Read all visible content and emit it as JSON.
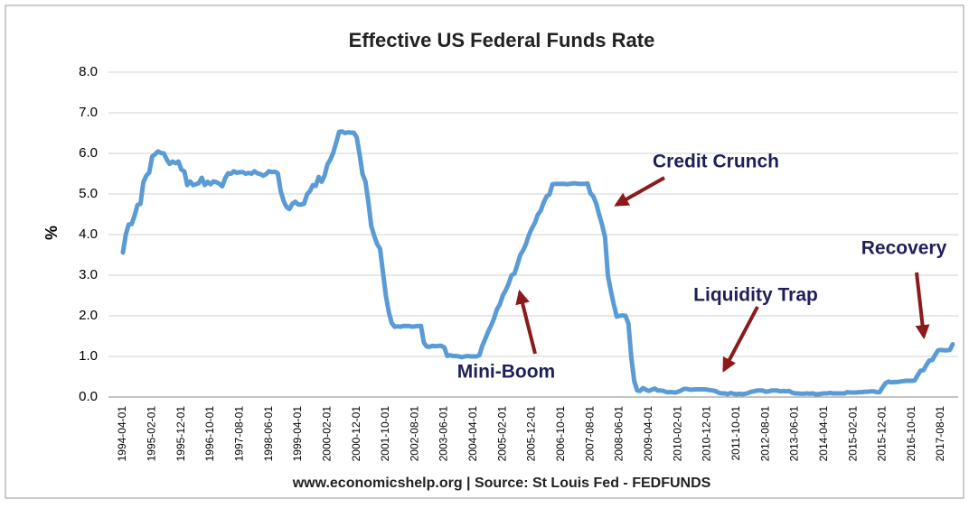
{
  "chart_data": {
    "type": "line",
    "title": "Effective US  Federal Funds Rate",
    "y_label": "%",
    "source": "www.economicshelp.org | Source: St Louis Fed - FEDFUNDS",
    "annotations": [
      "Credit Crunch",
      "Mini-Boom",
      "Liquidity Trap",
      "Recovery"
    ],
    "color": "#5b9bd5",
    "grid": true,
    "ylim": [
      0,
      8
    ],
    "yticks": [
      {
        "value": 0,
        "label": "0.0"
      },
      {
        "value": 1,
        "label": "1.0"
      },
      {
        "value": 2,
        "label": "2.0"
      },
      {
        "value": 3,
        "label": "3.0"
      },
      {
        "value": 4,
        "label": "4.0"
      },
      {
        "value": 5,
        "label": "5.0"
      },
      {
        "value": 6,
        "label": "6.0"
      },
      {
        "value": 7,
        "label": "7.0"
      },
      {
        "value": 8,
        "label": "8.0"
      }
    ],
    "categories": [
      "1994-04-01",
      null,
      null,
      null,
      null,
      null,
      null,
      null,
      null,
      null,
      "1995-02-01",
      null,
      null,
      null,
      null,
      null,
      null,
      null,
      null,
      null,
      "1995-12-01",
      null,
      null,
      null,
      null,
      null,
      null,
      null,
      null,
      null,
      "1996-10-01",
      null,
      null,
      null,
      null,
      null,
      null,
      null,
      null,
      null,
      "1997-08-01",
      null,
      null,
      null,
      null,
      null,
      null,
      null,
      null,
      null,
      "1998-06-01",
      null,
      null,
      null,
      null,
      null,
      null,
      null,
      null,
      null,
      "1999-04-01",
      null,
      null,
      null,
      null,
      null,
      null,
      null,
      null,
      null,
      "2000-02-01",
      null,
      null,
      null,
      null,
      null,
      null,
      null,
      null,
      null,
      "2000-12-01",
      null,
      null,
      null,
      null,
      null,
      null,
      null,
      null,
      null,
      "2001-10-01",
      null,
      null,
      null,
      null,
      null,
      null,
      null,
      null,
      null,
      "2002-08-01",
      null,
      null,
      null,
      null,
      null,
      null,
      null,
      null,
      null,
      "2003-06-01",
      null,
      null,
      null,
      null,
      null,
      null,
      null,
      null,
      null,
      "2004-04-01",
      null,
      null,
      null,
      null,
      null,
      null,
      null,
      null,
      null,
      "2005-02-01",
      null,
      null,
      null,
      null,
      null,
      null,
      null,
      null,
      null,
      "2005-12-01",
      null,
      null,
      null,
      null,
      null,
      null,
      null,
      null,
      null,
      "2006-10-01",
      null,
      null,
      null,
      null,
      null,
      null,
      null,
      null,
      null,
      "2007-08-01",
      null,
      null,
      null,
      null,
      null,
      null,
      null,
      null,
      null,
      "2008-06-01",
      null,
      null,
      null,
      null,
      null,
      null,
      null,
      null,
      null,
      "2009-04-01",
      null,
      null,
      null,
      null,
      null,
      null,
      null,
      null,
      null,
      "2010-02-01",
      null,
      null,
      null,
      null,
      null,
      null,
      null,
      null,
      null,
      "2010-12-01",
      null,
      null,
      null,
      null,
      null,
      null,
      null,
      null,
      null,
      "2011-10-01",
      null,
      null,
      null,
      null,
      null,
      null,
      null,
      null,
      null,
      "2012-08-01",
      null,
      null,
      null,
      null,
      null,
      null,
      null,
      null,
      null,
      "2013-06-01",
      null,
      null,
      null,
      null,
      null,
      null,
      null,
      null,
      null,
      "2014-04-01",
      null,
      null,
      null,
      null,
      null,
      null,
      null,
      null,
      null,
      "2015-02-01",
      null,
      null,
      null,
      null,
      null,
      null,
      null,
      null,
      null,
      "2015-12-01",
      null,
      null,
      null,
      null,
      null,
      null,
      null,
      null,
      null,
      "2016-10-01",
      null,
      null,
      null,
      null,
      null,
      null,
      null,
      null,
      null,
      "2017-08-01",
      null,
      null,
      null,
      null
    ],
    "values": [
      3.56,
      4.01,
      4.25,
      4.26,
      4.47,
      4.73,
      4.76,
      5.29,
      5.45,
      5.53,
      5.92,
      5.98,
      6.05,
      6.01,
      6.0,
      5.85,
      5.74,
      5.8,
      5.76,
      5.8,
      5.6,
      5.56,
      5.22,
      5.31,
      5.22,
      5.24,
      5.27,
      5.4,
      5.22,
      5.3,
      5.24,
      5.31,
      5.29,
      5.25,
      5.19,
      5.39,
      5.51,
      5.5,
      5.56,
      5.52,
      5.54,
      5.54,
      5.5,
      5.52,
      5.5,
      5.56,
      5.51,
      5.49,
      5.45,
      5.49,
      5.56,
      5.54,
      5.55,
      5.51,
      5.07,
      4.83,
      4.68,
      4.63,
      4.76,
      4.81,
      4.74,
      4.74,
      4.76,
      4.99,
      5.07,
      5.22,
      5.2,
      5.42,
      5.3,
      5.45,
      5.73,
      5.85,
      6.02,
      6.27,
      6.53,
      6.54,
      6.5,
      6.52,
      6.51,
      6.51,
      6.4,
      5.98,
      5.49,
      5.31,
      4.8,
      4.21,
      3.97,
      3.77,
      3.65,
      3.07,
      2.49,
      2.09,
      1.82,
      1.73,
      1.74,
      1.73,
      1.75,
      1.75,
      1.75,
      1.73,
      1.74,
      1.75,
      1.75,
      1.34,
      1.24,
      1.24,
      1.26,
      1.25,
      1.26,
      1.26,
      1.22,
      1.01,
      1.03,
      1.01,
      1.01,
      1.0,
      0.98,
      1.0,
      1.01,
      1.0,
      1.0,
      1.0,
      1.03,
      1.26,
      1.43,
      1.61,
      1.76,
      1.93,
      2.16,
      2.28,
      2.5,
      2.63,
      2.79,
      3.0,
      3.04,
      3.26,
      3.5,
      3.62,
      3.78,
      4.0,
      4.16,
      4.29,
      4.49,
      4.59,
      4.79,
      4.94,
      4.99,
      5.24,
      5.25,
      5.25,
      5.25,
      5.25,
      5.24,
      5.25,
      5.26,
      5.26,
      5.25,
      5.25,
      5.25,
      5.26,
      5.02,
      4.94,
      4.76,
      4.49,
      4.24,
      3.94,
      2.98,
      2.61,
      2.28,
      1.98,
      2.0,
      2.01,
      2.0,
      1.81,
      0.97,
      0.39,
      0.16,
      0.15,
      0.22,
      0.18,
      0.15,
      0.18,
      0.21,
      0.16,
      0.16,
      0.15,
      0.12,
      0.12,
      0.12,
      0.11,
      0.13,
      0.16,
      0.2,
      0.2,
      0.18,
      0.18,
      0.19,
      0.19,
      0.19,
      0.19,
      0.18,
      0.17,
      0.16,
      0.14,
      0.1,
      0.09,
      0.09,
      0.07,
      0.1,
      0.08,
      0.07,
      0.08,
      0.07,
      0.08,
      0.1,
      0.13,
      0.14,
      0.16,
      0.16,
      0.16,
      0.13,
      0.14,
      0.16,
      0.16,
      0.16,
      0.14,
      0.15,
      0.14,
      0.15,
      0.11,
      0.09,
      0.09,
      0.08,
      0.08,
      0.09,
      0.08,
      0.09,
      0.07,
      0.07,
      0.08,
      0.09,
      0.09,
      0.1,
      0.09,
      0.09,
      0.09,
      0.09,
      0.09,
      0.12,
      0.11,
      0.11,
      0.11,
      0.12,
      0.12,
      0.13,
      0.13,
      0.14,
      0.14,
      0.12,
      0.12,
      0.24,
      0.34,
      0.38,
      0.36,
      0.37,
      0.37,
      0.38,
      0.39,
      0.4,
      0.4,
      0.4,
      0.41,
      0.54,
      0.65,
      0.66,
      0.79,
      0.9,
      0.91,
      1.04,
      1.15,
      1.16,
      1.15,
      1.15,
      1.16,
      1.3
    ]
  }
}
